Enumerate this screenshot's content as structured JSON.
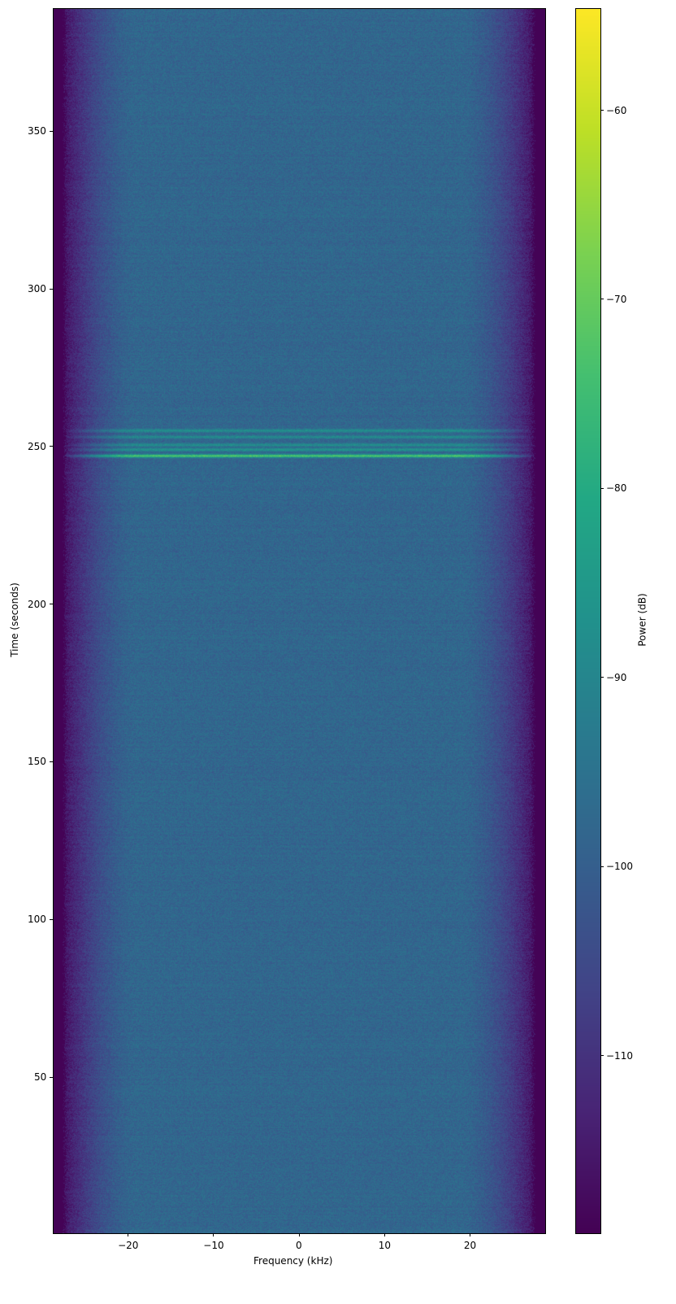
{
  "chart_data": {
    "type": "heatmap",
    "title": "",
    "xlabel": "Frequency (kHz)",
    "ylabel": "Time (seconds)",
    "colorbar_label": "Power (dB)",
    "colormap": "viridis",
    "xlim": [
      -28.8,
      28.8
    ],
    "ylim": [
      0.5,
      389
    ],
    "clim": [
      -119.4,
      -54.6
    ],
    "xticks": [
      -20,
      -10,
      0,
      10,
      20
    ],
    "xtick_labels": [
      "−20",
      "−10",
      "0",
      "10",
      "20"
    ],
    "yticks": [
      50,
      100,
      150,
      200,
      250,
      300,
      350
    ],
    "ytick_labels": [
      "50",
      "100",
      "150",
      "200",
      "250",
      "300",
      "350"
    ],
    "cticks": [
      -110,
      -100,
      -90,
      -80,
      -70,
      -60
    ],
    "ctick_labels": [
      "−110",
      "−100",
      "−90",
      "−80",
      "−70",
      "−60"
    ],
    "features": {
      "noise_floor_db": -98,
      "passband_edge_khz": 26.5,
      "rolloff_start_khz": 19,
      "out_of_band_db": -119,
      "burst_events": [
        {
          "time_s": 247,
          "power_db": -72
        },
        {
          "time_s": 249,
          "power_db": -86
        },
        {
          "time_s": 250.5,
          "power_db": -88
        },
        {
          "time_s": 253,
          "power_db": -89
        },
        {
          "time_s": 255,
          "power_db": -87
        }
      ]
    }
  }
}
